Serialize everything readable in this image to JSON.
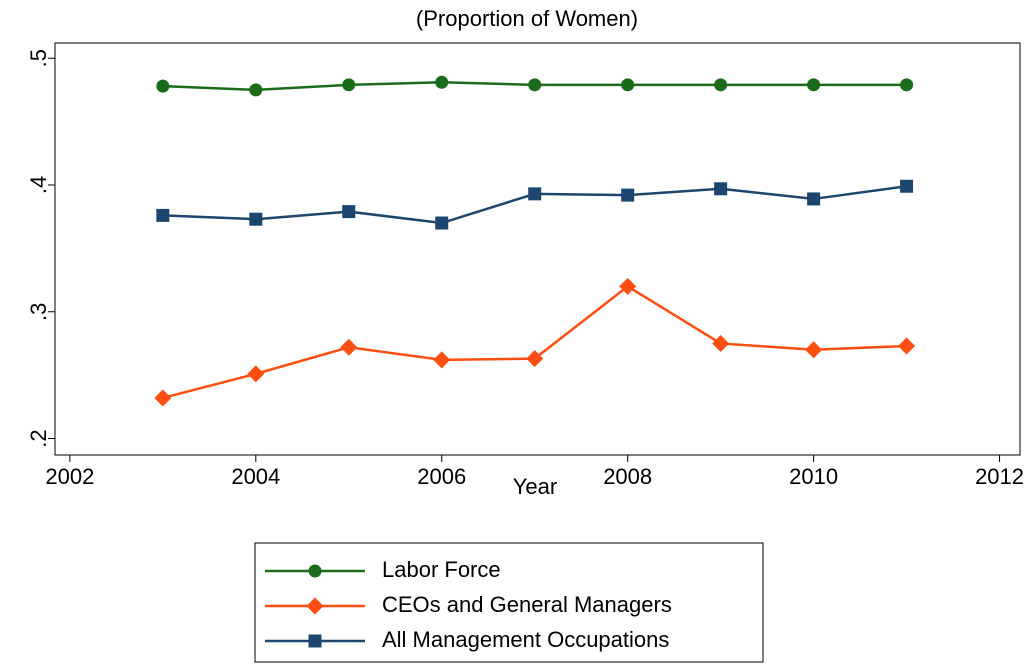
{
  "chart_data": {
    "type": "line",
    "title": "(Proportion of Women)",
    "x_label": "Year",
    "x": [
      2003,
      2004,
      2005,
      2006,
      2007,
      2008,
      2009,
      2010,
      2011
    ],
    "series": [
      {
        "name": "Labor Force",
        "color": "#1a6b1a",
        "marker": "circle",
        "values": [
          0.478,
          0.475,
          0.479,
          0.481,
          0.479,
          0.479,
          0.479,
          0.479,
          0.479
        ]
      },
      {
        "name": "CEOs and General Managers",
        "color": "#ff4e12",
        "marker": "diamond",
        "values": [
          0.232,
          0.251,
          0.272,
          0.262,
          0.263,
          0.32,
          0.275,
          0.27,
          0.273
        ]
      },
      {
        "name": "All Management Occupations",
        "color": "#1d466e",
        "marker": "square",
        "values": [
          0.376,
          0.373,
          0.379,
          0.37,
          0.393,
          0.392,
          0.397,
          0.389,
          0.399
        ]
      }
    ],
    "xlim": [
      2001.84,
      2012.22
    ],
    "xticks": [
      2002,
      2004,
      2006,
      2008,
      2010,
      2012
    ],
    "ylim": [
      0.187,
      0.512
    ],
    "yticks": [
      {
        "value": 0.2,
        "label": ".2"
      },
      {
        "value": 0.3,
        "label": ".3"
      },
      {
        "value": 0.4,
        "label": ".4"
      },
      {
        "value": 0.5,
        "label": ".5"
      }
    ],
    "legend": "bottom"
  }
}
